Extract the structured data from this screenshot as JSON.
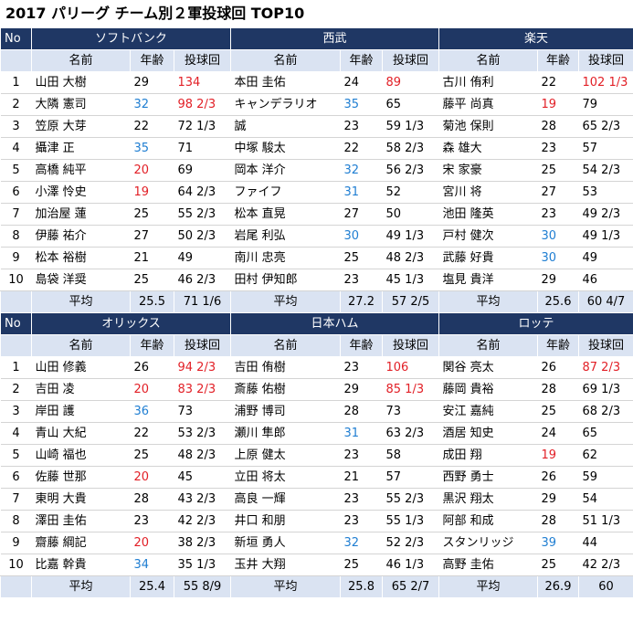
{
  "title": "2017 パリーグ チーム別２軍投球回 TOP10",
  "labels": {
    "no": "No",
    "name": "名前",
    "age": "年齢",
    "ip": "投球回",
    "avg": "平均"
  },
  "colors": {
    "header_bg": "#1f3764",
    "subheader_bg": "#dae3f2",
    "red": "#e21f26",
    "blue": "#1f7ed2"
  },
  "blocks": [
    {
      "teams": [
        {
          "name": "ソフトバンク",
          "rows": [
            {
              "name": "山田 大樹",
              "age": "29",
              "ip": "134",
              "age_color": "",
              "ip_color": "red"
            },
            {
              "name": "大隣 憲司",
              "age": "32",
              "ip": "98 2/3",
              "age_color": "blue",
              "ip_color": "red"
            },
            {
              "name": "笠原 大芽",
              "age": "22",
              "ip": "72 1/3",
              "age_color": "",
              "ip_color": ""
            },
            {
              "name": "攝津 正",
              "age": "35",
              "ip": "71",
              "age_color": "blue",
              "ip_color": ""
            },
            {
              "name": "高橋 純平",
              "age": "20",
              "ip": "69",
              "age_color": "red",
              "ip_color": ""
            },
            {
              "name": "小澤 怜史",
              "age": "19",
              "ip": "64 2/3",
              "age_color": "red",
              "ip_color": ""
            },
            {
              "name": "加治屋 蓮",
              "age": "25",
              "ip": "55 2/3",
              "age_color": "",
              "ip_color": ""
            },
            {
              "name": "伊藤 祐介",
              "age": "27",
              "ip": "50 2/3",
              "age_color": "",
              "ip_color": ""
            },
            {
              "name": "松本 裕樹",
              "age": "21",
              "ip": "49",
              "age_color": "",
              "ip_color": ""
            },
            {
              "name": "島袋 洋奨",
              "age": "25",
              "ip": "46 2/3",
              "age_color": "",
              "ip_color": ""
            }
          ],
          "avg_age": "25.5",
          "avg_ip": "71 1/6"
        },
        {
          "name": "西武",
          "rows": [
            {
              "name": "本田 圭佑",
              "age": "24",
              "ip": "89",
              "age_color": "",
              "ip_color": "red"
            },
            {
              "name": "キャンデラリオ",
              "age": "35",
              "ip": "65",
              "age_color": "blue",
              "ip_color": ""
            },
            {
              "name": "誠",
              "age": "23",
              "ip": "59 1/3",
              "age_color": "",
              "ip_color": ""
            },
            {
              "name": "中塚 駿太",
              "age": "22",
              "ip": "58 2/3",
              "age_color": "",
              "ip_color": ""
            },
            {
              "name": "岡本 洋介",
              "age": "32",
              "ip": "56 2/3",
              "age_color": "blue",
              "ip_color": ""
            },
            {
              "name": "ファイフ",
              "age": "31",
              "ip": "52",
              "age_color": "blue",
              "ip_color": ""
            },
            {
              "name": "松本 直晃",
              "age": "27",
              "ip": "50",
              "age_color": "",
              "ip_color": ""
            },
            {
              "name": "岩尾 利弘",
              "age": "30",
              "ip": "49 1/3",
              "age_color": "blue",
              "ip_color": ""
            },
            {
              "name": "南川 忠亮",
              "age": "25",
              "ip": "48 2/3",
              "age_color": "",
              "ip_color": ""
            },
            {
              "name": "田村 伊知郎",
              "age": "23",
              "ip": "45 1/3",
              "age_color": "",
              "ip_color": ""
            }
          ],
          "avg_age": "27.2",
          "avg_ip": "57 2/5"
        },
        {
          "name": "楽天",
          "rows": [
            {
              "name": "古川 侑利",
              "age": "22",
              "ip": "102 1/3",
              "age_color": "",
              "ip_color": "red"
            },
            {
              "name": "藤平 尚真",
              "age": "19",
              "ip": "79",
              "age_color": "red",
              "ip_color": ""
            },
            {
              "name": "菊池 保則",
              "age": "28",
              "ip": "65 2/3",
              "age_color": "",
              "ip_color": ""
            },
            {
              "name": "森 雄大",
              "age": "23",
              "ip": "57",
              "age_color": "",
              "ip_color": ""
            },
            {
              "name": "宋 家豪",
              "age": "25",
              "ip": "54 2/3",
              "age_color": "",
              "ip_color": ""
            },
            {
              "name": "宮川 将",
              "age": "27",
              "ip": "53",
              "age_color": "",
              "ip_color": ""
            },
            {
              "name": "池田 隆英",
              "age": "23",
              "ip": "49 2/3",
              "age_color": "",
              "ip_color": ""
            },
            {
              "name": "戸村 健次",
              "age": "30",
              "ip": "49 1/3",
              "age_color": "blue",
              "ip_color": ""
            },
            {
              "name": "武藤 好貴",
              "age": "30",
              "ip": "49",
              "age_color": "blue",
              "ip_color": ""
            },
            {
              "name": "塩見 貴洋",
              "age": "29",
              "ip": "46",
              "age_color": "",
              "ip_color": ""
            }
          ],
          "avg_age": "25.6",
          "avg_ip": "60 4/7"
        }
      ]
    },
    {
      "teams": [
        {
          "name": "オリックス",
          "rows": [
            {
              "name": "山田 修義",
              "age": "26",
              "ip": "94 2/3",
              "age_color": "",
              "ip_color": "red"
            },
            {
              "name": "吉田 凌",
              "age": "20",
              "ip": "83 2/3",
              "age_color": "red",
              "ip_color": "red"
            },
            {
              "name": "岸田 護",
              "age": "36",
              "ip": "73",
              "age_color": "blue",
              "ip_color": ""
            },
            {
              "name": "青山 大紀",
              "age": "22",
              "ip": "53 2/3",
              "age_color": "",
              "ip_color": ""
            },
            {
              "name": "山崎 福也",
              "age": "25",
              "ip": "48 2/3",
              "age_color": "",
              "ip_color": ""
            },
            {
              "name": "佐藤 世那",
              "age": "20",
              "ip": "45",
              "age_color": "red",
              "ip_color": ""
            },
            {
              "name": "東明 大貴",
              "age": "28",
              "ip": "43 2/3",
              "age_color": "",
              "ip_color": ""
            },
            {
              "name": "澤田 圭佑",
              "age": "23",
              "ip": "42 2/3",
              "age_color": "",
              "ip_color": ""
            },
            {
              "name": "齋藤 綱記",
              "age": "20",
              "ip": "38 2/3",
              "age_color": "red",
              "ip_color": ""
            },
            {
              "name": "比嘉 幹貴",
              "age": "34",
              "ip": "35 1/3",
              "age_color": "blue",
              "ip_color": ""
            }
          ],
          "avg_age": "25.4",
          "avg_ip": "55 8/9"
        },
        {
          "name": "日本ハム",
          "rows": [
            {
              "name": "吉田 侑樹",
              "age": "23",
              "ip": "106",
              "age_color": "",
              "ip_color": "red"
            },
            {
              "name": "斎藤 佑樹",
              "age": "29",
              "ip": "85 1/3",
              "age_color": "",
              "ip_color": "red"
            },
            {
              "name": "浦野 博司",
              "age": "28",
              "ip": "73",
              "age_color": "",
              "ip_color": ""
            },
            {
              "name": "瀬川 隼郎",
              "age": "31",
              "ip": "63 2/3",
              "age_color": "blue",
              "ip_color": ""
            },
            {
              "name": "上原 健太",
              "age": "23",
              "ip": "58",
              "age_color": "",
              "ip_color": ""
            },
            {
              "name": "立田 将太",
              "age": "21",
              "ip": "57",
              "age_color": "",
              "ip_color": ""
            },
            {
              "name": "高良 一輝",
              "age": "23",
              "ip": "55 2/3",
              "age_color": "",
              "ip_color": ""
            },
            {
              "name": "井口 和朋",
              "age": "23",
              "ip": "55 1/3",
              "age_color": "",
              "ip_color": ""
            },
            {
              "name": "新垣 勇人",
              "age": "32",
              "ip": "52 2/3",
              "age_color": "blue",
              "ip_color": ""
            },
            {
              "name": "玉井 大翔",
              "age": "25",
              "ip": "46 1/3",
              "age_color": "",
              "ip_color": ""
            }
          ],
          "avg_age": "25.8",
          "avg_ip": "65 2/7"
        },
        {
          "name": "ロッテ",
          "rows": [
            {
              "name": "関谷 亮太",
              "age": "26",
              "ip": "87 2/3",
              "age_color": "",
              "ip_color": "red"
            },
            {
              "name": "藤岡 貴裕",
              "age": "28",
              "ip": "69 1/3",
              "age_color": "",
              "ip_color": ""
            },
            {
              "name": "安江 嘉純",
              "age": "25",
              "ip": "68 2/3",
              "age_color": "",
              "ip_color": ""
            },
            {
              "name": "酒居 知史",
              "age": "24",
              "ip": "65",
              "age_color": "",
              "ip_color": ""
            },
            {
              "name": "成田 翔",
              "age": "19",
              "ip": "62",
              "age_color": "red",
              "ip_color": ""
            },
            {
              "name": "西野 勇士",
              "age": "26",
              "ip": "59",
              "age_color": "",
              "ip_color": ""
            },
            {
              "name": "黒沢 翔太",
              "age": "29",
              "ip": "54",
              "age_color": "",
              "ip_color": ""
            },
            {
              "name": "阿部 和成",
              "age": "28",
              "ip": "51 1/3",
              "age_color": "",
              "ip_color": ""
            },
            {
              "name": "スタンリッジ",
              "age": "39",
              "ip": "44",
              "age_color": "blue",
              "ip_color": ""
            },
            {
              "name": "高野 圭佑",
              "age": "25",
              "ip": "42 2/3",
              "age_color": "",
              "ip_color": ""
            }
          ],
          "avg_age": "26.9",
          "avg_ip": "60"
        }
      ]
    }
  ]
}
